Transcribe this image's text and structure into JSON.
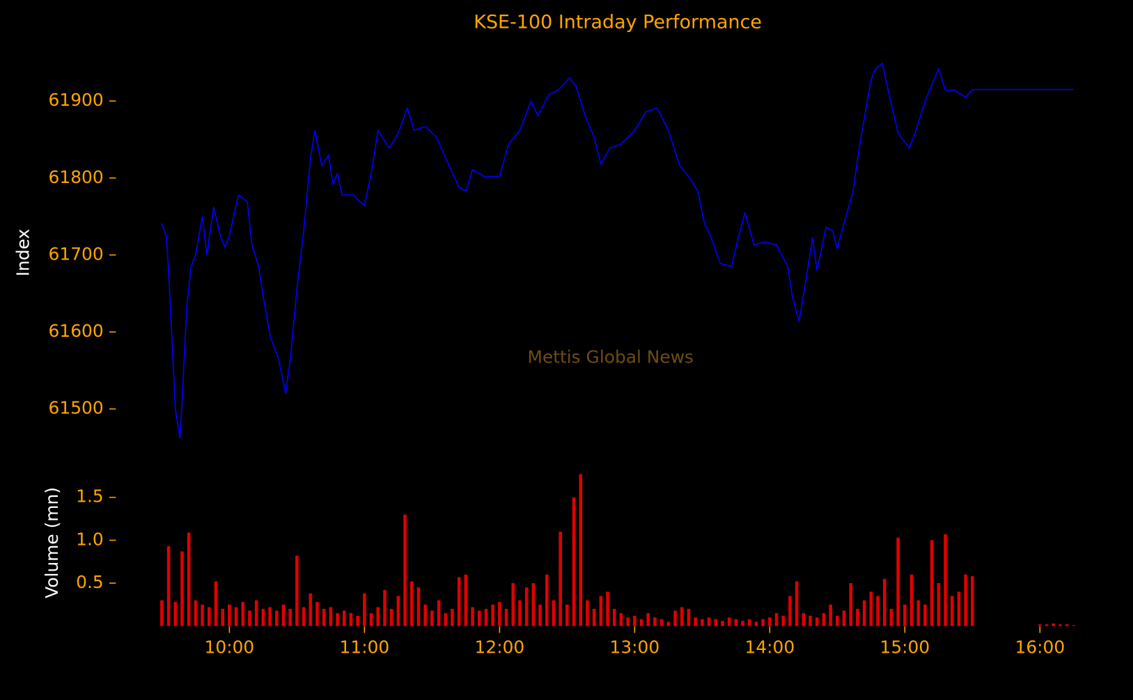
{
  "chart_data": [
    {
      "type": "line",
      "title": "KSE-100 Intraday Performance",
      "ylabel": "Index",
      "annotation": "Mettis Global News",
      "color": "#0000ff",
      "x": [
        "09:30",
        "09:32",
        "09:33",
        "09:34",
        "09:36",
        "09:38",
        "09:39",
        "09:41",
        "09:43",
        "09:45",
        "09:48",
        "09:50",
        "09:53",
        "09:56",
        "09:58",
        "10:00",
        "10:04",
        "10:08",
        "10:10",
        "10:13",
        "10:15",
        "10:18",
        "10:22",
        "10:25",
        "10:27",
        "10:30",
        "10:33",
        "10:36",
        "10:38",
        "10:41",
        "10:44",
        "10:46",
        "10:48",
        "10:50",
        "10:55",
        "11:00",
        "11:03",
        "11:06",
        "11:11",
        "11:15",
        "11:19",
        "11:22",
        "11:27",
        "11:32",
        "11:37",
        "11:42",
        "11:45",
        "11:48",
        "11:53",
        "12:00",
        "12:04",
        "12:09",
        "12:14",
        "12:17",
        "12:22",
        "12:26",
        "12:31",
        "12:34",
        "12:38",
        "12:42",
        "12:45",
        "12:49",
        "12:54",
        "13:00",
        "13:05",
        "13:10",
        "13:15",
        "13:20",
        "13:24",
        "13:28",
        "13:31",
        "13:34",
        "13:38",
        "13:43",
        "13:46",
        "13:49",
        "13:53",
        "13:58",
        "14:03",
        "14:08",
        "14:10",
        "14:13",
        "14:16",
        "14:19",
        "14:21",
        "14:25",
        "14:28",
        "14:30",
        "14:33",
        "14:37",
        "14:40",
        "14:45",
        "14:47",
        "14:50",
        "14:53",
        "14:57",
        "15:02",
        "15:05",
        "15:09",
        "15:13",
        "15:15",
        "15:18",
        "15:22",
        "15:27",
        "15:30",
        "16:15"
      ],
      "values": [
        61741,
        61725,
        61680,
        61620,
        61500,
        61462,
        61510,
        61630,
        61685,
        61700,
        61750,
        61700,
        61762,
        61725,
        61710,
        61725,
        61778,
        61769,
        61713,
        61685,
        61647,
        61596,
        61563,
        61520,
        61563,
        61656,
        61731,
        61825,
        61862,
        61816,
        61830,
        61792,
        61806,
        61778,
        61778,
        61764,
        61806,
        61862,
        61839,
        61858,
        61891,
        61862,
        61867,
        61853,
        61820,
        61788,
        61783,
        61811,
        61802,
        61802,
        61844,
        61862,
        61900,
        61881,
        61909,
        61914,
        61930,
        61919,
        61881,
        61853,
        61818,
        61839,
        61844,
        61862,
        61886,
        61891,
        61862,
        61816,
        61802,
        61783,
        61741,
        61722,
        61689,
        61685,
        61722,
        61755,
        61713,
        61717,
        61713,
        61685,
        61647,
        61614,
        61666,
        61722,
        61680,
        61736,
        61731,
        61708,
        61741,
        61783,
        61844,
        61928,
        61942,
        61949,
        61909,
        61858,
        61839,
        61862,
        61900,
        61928,
        61942,
        61914,
        61914,
        61905,
        61915,
        61915
      ],
      "xlim": [
        "09:24",
        "16:21"
      ],
      "ylim": [
        61450,
        61960
      ],
      "yticks": [
        61500,
        61600,
        61700,
        61800,
        61900
      ]
    },
    {
      "type": "bar",
      "ylabel": "Volume (mn)",
      "color": "#e00000",
      "x": [
        "09:30",
        "09:33",
        "09:36",
        "09:39",
        "09:42",
        "09:45",
        "09:48",
        "09:51",
        "09:54",
        "09:57",
        "10:00",
        "10:03",
        "10:06",
        "10:09",
        "10:12",
        "10:15",
        "10:18",
        "10:21",
        "10:24",
        "10:27",
        "10:30",
        "10:33",
        "10:36",
        "10:39",
        "10:42",
        "10:45",
        "10:48",
        "10:51",
        "10:54",
        "10:57",
        "11:00",
        "11:03",
        "11:06",
        "11:09",
        "11:12",
        "11:15",
        "11:18",
        "11:21",
        "11:24",
        "11:27",
        "11:30",
        "11:33",
        "11:36",
        "11:39",
        "11:42",
        "11:45",
        "11:48",
        "11:51",
        "11:54",
        "11:57",
        "12:00",
        "12:03",
        "12:06",
        "12:09",
        "12:12",
        "12:15",
        "12:18",
        "12:21",
        "12:24",
        "12:27",
        "12:30",
        "12:33",
        "12:36",
        "12:39",
        "12:42",
        "12:45",
        "12:48",
        "12:51",
        "12:54",
        "12:57",
        "13:00",
        "13:03",
        "13:06",
        "13:09",
        "13:12",
        "13:15",
        "13:18",
        "13:21",
        "13:24",
        "13:27",
        "13:30",
        "13:33",
        "13:36",
        "13:39",
        "13:42",
        "13:45",
        "13:48",
        "13:51",
        "13:54",
        "13:57",
        "14:00",
        "14:03",
        "14:06",
        "14:09",
        "14:12",
        "14:15",
        "14:18",
        "14:21",
        "14:24",
        "14:27",
        "14:30",
        "14:33",
        "14:36",
        "14:39",
        "14:42",
        "14:45",
        "14:48",
        "14:51",
        "14:54",
        "14:57",
        "15:00",
        "15:03",
        "15:06",
        "15:09",
        "15:12",
        "15:15",
        "15:18",
        "15:21",
        "15:24",
        "15:27",
        "15:30",
        "16:00",
        "16:03",
        "16:06",
        "16:09",
        "16:12",
        "16:15"
      ],
      "values": [
        0.3,
        0.93,
        0.28,
        0.87,
        1.09,
        0.3,
        0.25,
        0.22,
        0.52,
        0.2,
        0.25,
        0.22,
        0.28,
        0.18,
        0.3,
        0.2,
        0.22,
        0.18,
        0.25,
        0.2,
        0.82,
        0.22,
        0.38,
        0.28,
        0.2,
        0.22,
        0.15,
        0.18,
        0.15,
        0.12,
        0.38,
        0.15,
        0.22,
        0.42,
        0.2,
        0.35,
        1.3,
        0.52,
        0.45,
        0.25,
        0.18,
        0.3,
        0.15,
        0.2,
        0.57,
        0.6,
        0.22,
        0.18,
        0.2,
        0.25,
        0.28,
        0.2,
        0.5,
        0.3,
        0.45,
        0.5,
        0.25,
        0.6,
        0.3,
        1.1,
        0.25,
        1.5,
        1.77,
        0.3,
        0.2,
        0.35,
        0.4,
        0.2,
        0.15,
        0.1,
        0.12,
        0.08,
        0.15,
        0.1,
        0.08,
        0.05,
        0.18,
        0.22,
        0.2,
        0.1,
        0.08,
        0.1,
        0.08,
        0.06,
        0.1,
        0.08,
        0.06,
        0.08,
        0.05,
        0.08,
        0.1,
        0.15,
        0.12,
        0.35,
        0.52,
        0.15,
        0.12,
        0.1,
        0.15,
        0.25,
        0.12,
        0.18,
        0.5,
        0.2,
        0.3,
        0.4,
        0.35,
        0.55,
        0.2,
        1.03,
        0.25,
        0.6,
        0.3,
        0.25,
        1.0,
        0.5,
        1.07,
        0.35,
        0.4,
        0.6,
        0.58,
        0.02,
        0.02,
        0.03,
        0.02,
        0.02,
        0.01
      ],
      "xlim": [
        "09:24",
        "16:21"
      ],
      "ylim": [
        0,
        1.8
      ],
      "yticks": [
        0.5,
        {
          "value": 1,
          "label": "1.0"
        },
        1.5
      ],
      "xticks": [
        "10:00",
        "11:00",
        "12:00",
        "13:00",
        "14:00",
        "15:00",
        "16:00"
      ]
    }
  ]
}
